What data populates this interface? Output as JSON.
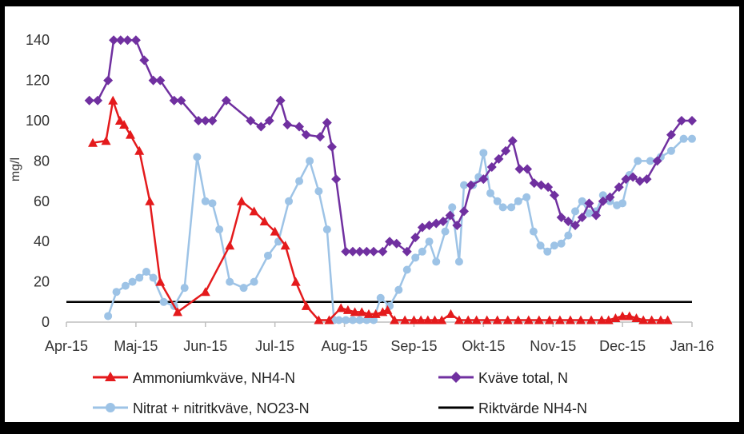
{
  "chart_data": {
    "type": "line",
    "title": "",
    "xlabel": "",
    "ylabel": "mg/l",
    "ylim": [
      0,
      150
    ],
    "yticks": [
      0,
      20,
      40,
      60,
      80,
      100,
      120,
      140
    ],
    "xlim": [
      0,
      9
    ],
    "x_ticks": [
      {
        "pos": 0,
        "label": "Apr-15"
      },
      {
        "pos": 1,
        "label": "Maj-15"
      },
      {
        "pos": 2,
        "label": "Jun-15"
      },
      {
        "pos": 3,
        "label": "Jul-15"
      },
      {
        "pos": 4,
        "label": "Aug-15"
      },
      {
        "pos": 5,
        "label": "Sep-15"
      },
      {
        "pos": 6,
        "label": "Okt-15"
      },
      {
        "pos": 7,
        "label": "Nov-15"
      },
      {
        "pos": 8,
        "label": "Dec-15"
      },
      {
        "pos": 9,
        "label": "Jan-16"
      }
    ],
    "legend_position": "bottom",
    "series": [
      {
        "name": "Ammoniumkväve, NH4-N",
        "color": "#e41a1c",
        "marker": "triangle",
        "x": [
          0.38,
          0.57,
          0.67,
          0.77,
          0.83,
          0.92,
          1.05,
          1.2,
          1.35,
          1.6,
          2.0,
          2.35,
          2.52,
          2.7,
          2.85,
          3.0,
          3.15,
          3.3,
          3.45,
          3.63,
          3.78,
          3.95,
          4.05,
          4.15,
          4.25,
          4.35,
          4.45,
          4.55,
          4.62,
          4.72,
          4.87,
          5.0,
          5.1,
          5.2,
          5.3,
          5.4,
          5.53,
          5.65,
          5.78,
          5.9,
          6.05,
          6.2,
          6.35,
          6.5,
          6.65,
          6.8,
          6.95,
          7.1,
          7.25,
          7.4,
          7.55,
          7.7,
          7.8,
          7.9,
          8.0,
          8.1,
          8.2,
          8.3,
          8.42,
          8.55,
          8.65
        ],
        "y": [
          89,
          90,
          110,
          100,
          98,
          93,
          85,
          60,
          20,
          5,
          15,
          38,
          60,
          55,
          50,
          45,
          38,
          20,
          8,
          1,
          1,
          7,
          6,
          5,
          5,
          4,
          4,
          5,
          6,
          1,
          1,
          1,
          1,
          1,
          1,
          1,
          4,
          1,
          1,
          1,
          1,
          1,
          1,
          1,
          1,
          1,
          1,
          1,
          1,
          1,
          1,
          1,
          1,
          2,
          3,
          3,
          2,
          1,
          1,
          1,
          1
        ]
      },
      {
        "name": "Kväve total, N",
        "color": "#7030a0",
        "marker": "diamond",
        "x": [
          0.33,
          0.45,
          0.6,
          0.68,
          0.78,
          0.88,
          1.0,
          1.12,
          1.25,
          1.35,
          1.55,
          1.65,
          1.9,
          2.0,
          2.1,
          2.3,
          2.65,
          2.8,
          2.92,
          3.08,
          3.18,
          3.35,
          3.45,
          3.65,
          3.75,
          3.82,
          3.88,
          4.02,
          4.12,
          4.22,
          4.32,
          4.42,
          4.55,
          4.65,
          4.75,
          4.9,
          5.02,
          5.12,
          5.22,
          5.32,
          5.42,
          5.52,
          5.62,
          5.72,
          5.82,
          6.0,
          6.12,
          6.22,
          6.32,
          6.42,
          6.52,
          6.63,
          6.73,
          6.83,
          6.93,
          7.02,
          7.12,
          7.22,
          7.32,
          7.42,
          7.52,
          7.62,
          7.72,
          7.82,
          7.95,
          8.05,
          8.15,
          8.25,
          8.35,
          8.5,
          8.7,
          8.85,
          9.0
        ],
        "y": [
          110,
          110,
          120,
          140,
          140,
          140,
          140,
          130,
          120,
          120,
          110,
          110,
          100,
          100,
          100,
          110,
          100,
          97,
          100,
          110,
          98,
          97,
          93,
          92,
          99,
          87,
          71,
          35,
          35,
          35,
          35,
          35,
          35,
          40,
          39,
          35,
          42,
          47,
          48,
          49,
          50,
          53,
          48,
          55,
          68,
          71,
          77,
          81,
          85,
          90,
          76,
          76,
          69,
          68,
          67,
          63,
          52,
          50,
          48,
          52,
          59,
          53,
          60,
          62,
          67,
          71,
          72,
          70,
          71,
          80,
          93,
          100,
          100
        ]
      },
      {
        "name": "Nitrat + nitritkväve, NO23-N",
        "color": "#9dc3e6",
        "marker": "circle",
        "x": [
          0.6,
          0.72,
          0.85,
          0.95,
          1.05,
          1.15,
          1.25,
          1.4,
          1.55,
          1.7,
          1.88,
          2.0,
          2.1,
          2.2,
          2.35,
          2.55,
          2.7,
          2.9,
          3.05,
          3.2,
          3.35,
          3.5,
          3.63,
          3.75,
          3.85,
          3.92,
          4.02,
          4.12,
          4.22,
          4.32,
          4.42,
          4.52,
          4.65,
          4.78,
          4.9,
          5.02,
          5.12,
          5.22,
          5.32,
          5.45,
          5.55,
          5.65,
          5.72,
          5.85,
          5.93,
          6.0,
          6.1,
          6.2,
          6.28,
          6.4,
          6.5,
          6.62,
          6.72,
          6.82,
          6.92,
          7.02,
          7.12,
          7.22,
          7.32,
          7.42,
          7.52,
          7.62,
          7.72,
          7.82,
          7.92,
          8.0,
          8.1,
          8.22,
          8.4,
          8.55,
          8.7,
          8.88,
          9.0
        ],
        "y": [
          3,
          15,
          18,
          20,
          22,
          25,
          22,
          10,
          8,
          17,
          82,
          60,
          59,
          46,
          20,
          17,
          20,
          33,
          40,
          60,
          70,
          80,
          65,
          46,
          1,
          1,
          1,
          1,
          1,
          1,
          1,
          12,
          8,
          16,
          26,
          32,
          35,
          40,
          30,
          45,
          57,
          30,
          68,
          68,
          72,
          84,
          64,
          60,
          57,
          57,
          60,
          62,
          45,
          38,
          35,
          38,
          39,
          43,
          55,
          60,
          54,
          55,
          63,
          60,
          58,
          59,
          73,
          80,
          80,
          82,
          85,
          91,
          91
        ]
      },
      {
        "name": "Riktvärde NH4-N",
        "color": "#000000",
        "marker": "none",
        "x": [
          0,
          9
        ],
        "y": [
          10,
          10
        ]
      }
    ]
  },
  "legend": {
    "items": [
      {
        "label": "Ammoniumkväve, NH4-N"
      },
      {
        "label": "Kväve total, N"
      },
      {
        "label": "Nitrat + nitritkväve, NO23-N"
      },
      {
        "label": "Riktvärde NH4-N"
      }
    ]
  },
  "colors": {
    "background_panel": "#ffffff",
    "outer": "#000000",
    "axis": "#bfbfbf"
  }
}
